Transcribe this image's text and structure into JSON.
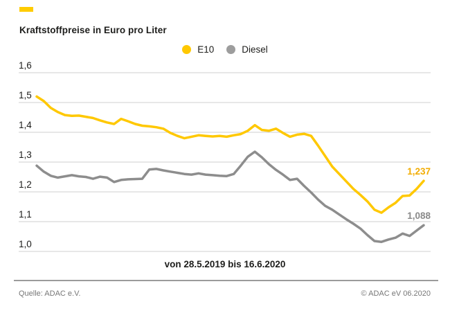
{
  "brand": {
    "accent_color": "#FFCC00"
  },
  "header": {
    "title": "Kraftstoffpreise in Euro pro Liter"
  },
  "legend": [
    {
      "label": "E10",
      "color": "#FFC800"
    },
    {
      "label": "Diesel",
      "color": "#9D9D9D"
    }
  ],
  "chart_data": {
    "type": "line",
    "title": "Kraftstoffpreise in Euro pro Liter",
    "xlabel": "von 28.5.2019 bis 16.6.2020",
    "ylabel": "Euro pro Liter",
    "ylim": [
      1.0,
      1.6
    ],
    "grid": true,
    "legend_position": "top-center",
    "yticks": [
      {
        "value": 1.6,
        "label": "1,6"
      },
      {
        "value": 1.5,
        "label": "1,5"
      },
      {
        "value": 1.4,
        "label": "1,4"
      },
      {
        "value": 1.3,
        "label": "1,3"
      },
      {
        "value": 1.2,
        "label": "1,2"
      },
      {
        "value": 1.1,
        "label": "1,1"
      },
      {
        "value": 1.0,
        "label": "1,0"
      }
    ],
    "x_start_date": "28.5.2019",
    "x_end_date": "16.6.2020",
    "series": [
      {
        "name": "Diesel",
        "color": "#8D8D8D",
        "end_label": "1,088",
        "end_label_color": "#8A8A8A",
        "end_value": 1.088,
        "values": [
          1.288,
          1.268,
          1.254,
          1.248,
          1.252,
          1.256,
          1.252,
          1.25,
          1.244,
          1.251,
          1.248,
          1.233,
          1.24,
          1.242,
          1.243,
          1.244,
          1.275,
          1.277,
          1.272,
          1.268,
          1.264,
          1.26,
          1.258,
          1.262,
          1.258,
          1.256,
          1.254,
          1.253,
          1.26,
          1.288,
          1.318,
          1.335,
          1.316,
          1.293,
          1.274,
          1.258,
          1.24,
          1.244,
          1.22,
          1.198,
          1.174,
          1.153,
          1.14,
          1.124,
          1.108,
          1.093,
          1.077,
          1.055,
          1.035,
          1.032,
          1.04,
          1.046,
          1.06,
          1.052,
          1.07,
          1.088
        ]
      },
      {
        "name": "E10",
        "color": "#FFC800",
        "end_label": "1,237",
        "end_label_color": "#F2AC00",
        "end_value": 1.237,
        "values": [
          1.52,
          1.505,
          1.482,
          1.468,
          1.458,
          1.455,
          1.456,
          1.452,
          1.448,
          1.44,
          1.433,
          1.428,
          1.445,
          1.437,
          1.428,
          1.422,
          1.42,
          1.417,
          1.412,
          1.398,
          1.388,
          1.38,
          1.385,
          1.39,
          1.388,
          1.386,
          1.388,
          1.385,
          1.39,
          1.394,
          1.405,
          1.424,
          1.408,
          1.405,
          1.412,
          1.398,
          1.385,
          1.392,
          1.395,
          1.388,
          1.355,
          1.32,
          1.285,
          1.26,
          1.235,
          1.21,
          1.19,
          1.168,
          1.14,
          1.13,
          1.148,
          1.163,
          1.186,
          1.188,
          1.21,
          1.237
        ]
      }
    ],
    "gridline_color": "#CFCFCF",
    "tick_label_color": "#1d1d1b"
  },
  "footer": {
    "source": "Quelle: ADAC e.V.",
    "copyright": "© ADAC eV 06.2020"
  }
}
